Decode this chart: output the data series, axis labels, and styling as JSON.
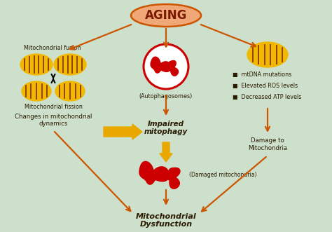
{
  "bg_color": "#cde0cc",
  "arrow_color": "#cc5500",
  "yellow_arrow_color": "#e8a800",
  "dark_text": "#2a1a00",
  "title": "AGING",
  "title_bg": "#f0a878",
  "title_border": "#cc5500",
  "mito_fill": "#f0b800",
  "mito_stripe": "#8b3a00",
  "red_color": "#cc0000",
  "bullet_points": [
    "mtDNA mutations",
    "Elevated ROS levels",
    "Decreased ATP levels"
  ]
}
